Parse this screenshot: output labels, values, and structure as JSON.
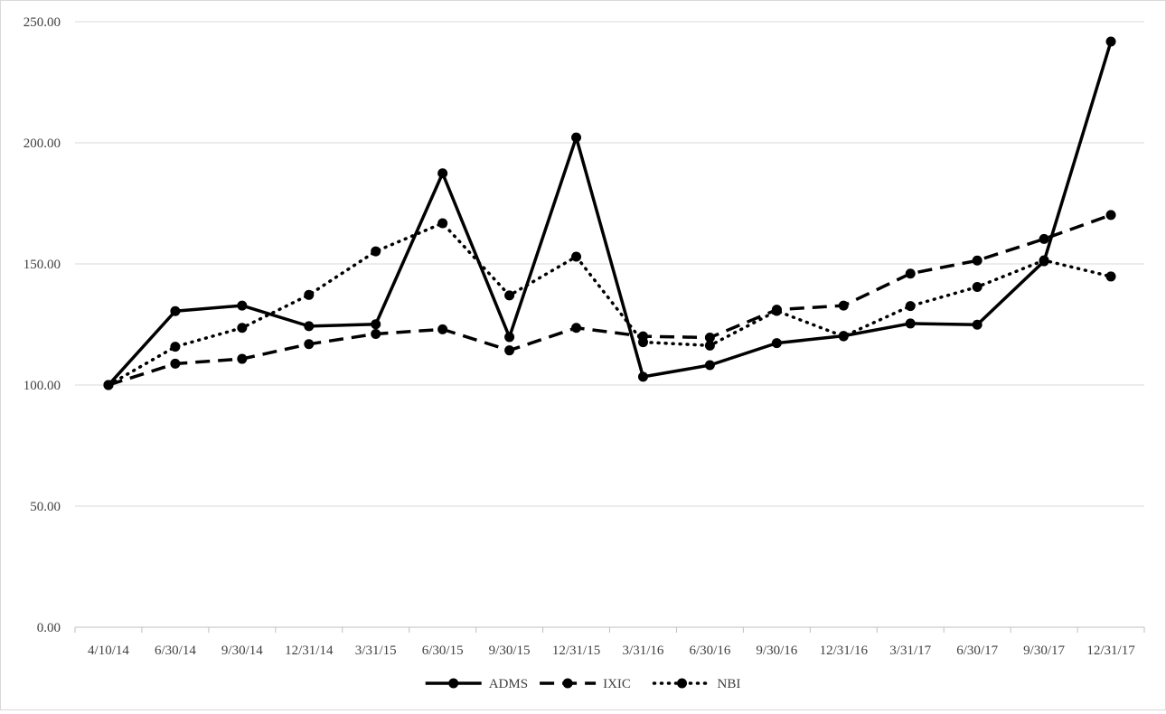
{
  "chart_data": {
    "type": "line",
    "title": "",
    "xlabel": "",
    "ylabel": "",
    "ylim": [
      0,
      250
    ],
    "y_ticks": [
      0,
      50,
      100,
      150,
      200,
      250
    ],
    "y_tick_labels": [
      "0.00",
      "50.00",
      "100.00",
      "150.00",
      "200.00",
      "250.00"
    ],
    "grid": "horizontal",
    "legend_position": "bottom-center",
    "categories": [
      "4/10/14",
      "6/30/14",
      "9/30/14",
      "12/31/14",
      "3/31/15",
      "6/30/15",
      "9/30/15",
      "12/31/15",
      "3/31/16",
      "6/30/16",
      "9/30/16",
      "12/31/16",
      "3/31/17",
      "6/30/17",
      "9/30/17",
      "12/31/17"
    ],
    "series": [
      {
        "name": "ADMS",
        "line_style": "solid",
        "color": "#000000",
        "values": [
          100.0,
          130.5,
          132.8,
          124.3,
          125.1,
          187.4,
          119.8,
          202.2,
          103.4,
          108.2,
          117.3,
          120.3,
          125.4,
          124.9,
          151.1,
          241.8
        ]
      },
      {
        "name": "IXIC",
        "line_style": "dashed",
        "color": "#000000",
        "values": [
          100.0,
          108.8,
          110.8,
          116.9,
          121.1,
          123.0,
          114.3,
          123.6,
          120.1,
          119.6,
          131.1,
          132.8,
          146.0,
          151.4,
          160.3,
          170.2
        ]
      },
      {
        "name": "NBI",
        "line_style": "dotted",
        "color": "#000000",
        "values": [
          100.0,
          115.8,
          123.6,
          137.2,
          155.2,
          166.8,
          137.0,
          153.0,
          117.7,
          116.3,
          130.6,
          120.1,
          132.6,
          140.5,
          151.5,
          144.8
        ]
      }
    ]
  },
  "colors": {
    "gridline": "#d9d9d9",
    "axis": "#bfbfbf",
    "tick_text": "#404040",
    "series": "#000000",
    "border": "#d9d9d9"
  }
}
